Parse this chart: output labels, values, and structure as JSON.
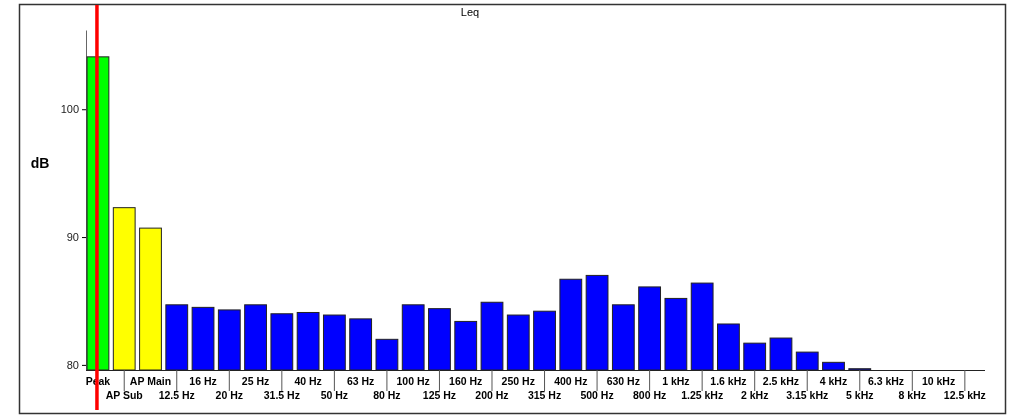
{
  "chart_data": {
    "type": "bar",
    "title": "Leq",
    "ylabel": "dB",
    "categories": [
      "Peak",
      "AP Sub",
      "AP Main",
      "12.5 Hz",
      "16 Hz",
      "20 Hz",
      "25 Hz",
      "31.5 Hz",
      "40 Hz",
      "50 Hz",
      "63 Hz",
      "80 Hz",
      "100 Hz",
      "125 Hz",
      "160 Hz",
      "200 Hz",
      "250 Hz",
      "315 Hz",
      "400 Hz",
      "500 Hz",
      "630 Hz",
      "800 Hz",
      "1 kHz",
      "1.25 kHz",
      "1.6 kHz",
      "2 kHz",
      "2.5 kHz",
      "3.15 kHz",
      "4 kHz",
      "5 kHz",
      "6.3 kHz",
      "8 kHz",
      "10 kHz",
      "12.5 kHz"
    ],
    "values": [
      104.1,
      92.3,
      90.7,
      84.7,
      84.5,
      84.3,
      84.7,
      84.0,
      84.1,
      83.9,
      83.6,
      82.0,
      84.7,
      84.4,
      83.4,
      84.9,
      83.9,
      84.2,
      86.7,
      87.0,
      84.7,
      86.1,
      85.2,
      86.4,
      83.2,
      81.7,
      82.1,
      81.0,
      80.2,
      79.7,
      null,
      null,
      null,
      null
    ],
    "colors": [
      "#00ff00",
      "#ffff00",
      "#ffff00",
      "#0000ff",
      "#0000ff",
      "#0000ff",
      "#0000ff",
      "#0000ff",
      "#0000ff",
      "#0000ff",
      "#0000ff",
      "#0000ff",
      "#0000ff",
      "#0000ff",
      "#0000ff",
      "#0000ff",
      "#0000ff",
      "#0000ff",
      "#0000ff",
      "#0000ff",
      "#0000ff",
      "#0000ff",
      "#0000ff",
      "#0000ff",
      "#0000ff",
      "#0000ff",
      "#0000ff",
      "#0000ff",
      "#0000ff",
      "#0000ff",
      null,
      null,
      null,
      null
    ],
    "ylim": [
      79.6,
      106.2
    ],
    "yticks": [
      80,
      90,
      100
    ],
    "ref_lines": [
      {
        "axis": "x",
        "value": "Peak",
        "color": "#ff0000"
      }
    ]
  }
}
